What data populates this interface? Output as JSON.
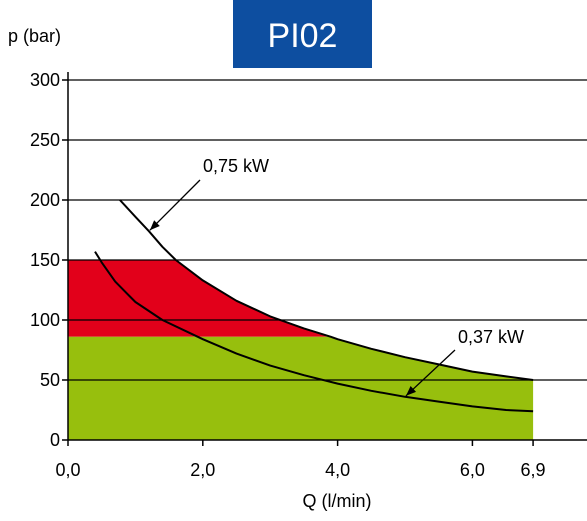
{
  "colors": {
    "title_bg": "#0d4ea0",
    "title_text": "#ffffff",
    "red_zone": "#e2001a",
    "green_zone": "#97bf0d",
    "lines": "#000000"
  },
  "chart_data": {
    "type": "line",
    "title": "PI02",
    "xlabel": "Q (l/min)",
    "ylabel": "p (bar)",
    "xlim": [
      0,
      7.7
    ],
    "ylim": [
      0,
      300
    ],
    "grid": "horizontal",
    "x_ticks": [
      {
        "value": 0,
        "label": "0,0"
      },
      {
        "value": 2,
        "label": "2,0"
      },
      {
        "value": 4,
        "label": "4,0"
      },
      {
        "value": 6,
        "label": "6,0"
      },
      {
        "value": 6.9,
        "label": "6,9"
      }
    ],
    "y_ticks": [
      {
        "value": 0,
        "label": "0"
      },
      {
        "value": 50,
        "label": "50"
      },
      {
        "value": 100,
        "label": "100"
      },
      {
        "value": 150,
        "label": "150"
      },
      {
        "value": 200,
        "label": "200"
      },
      {
        "value": 250,
        "label": "250"
      },
      {
        "value": 300,
        "label": "300"
      }
    ],
    "series": [
      {
        "name": "0,75 kW",
        "points": [
          [
            0.77,
            200
          ],
          [
            1.0,
            186
          ],
          [
            1.2,
            174
          ],
          [
            1.4,
            161
          ],
          [
            1.6,
            150
          ],
          [
            2.0,
            133
          ],
          [
            2.5,
            116
          ],
          [
            3.0,
            103
          ],
          [
            3.5,
            93
          ],
          [
            3.9,
            86
          ],
          [
            4.0,
            84
          ],
          [
            4.5,
            76
          ],
          [
            5.0,
            69
          ],
          [
            5.5,
            63
          ],
          [
            6.0,
            57
          ],
          [
            6.5,
            53
          ],
          [
            6.9,
            50
          ]
        ]
      },
      {
        "name": "0,37 kW",
        "points": [
          [
            0.4,
            157
          ],
          [
            0.5,
            148
          ],
          [
            0.7,
            132
          ],
          [
            1.0,
            115
          ],
          [
            1.4,
            100
          ],
          [
            2.0,
            84
          ],
          [
            2.5,
            72
          ],
          [
            3.0,
            62
          ],
          [
            3.5,
            54
          ],
          [
            4.0,
            47
          ],
          [
            4.5,
            41
          ],
          [
            5.0,
            36
          ],
          [
            5.5,
            32
          ],
          [
            6.0,
            28
          ],
          [
            6.5,
            25
          ],
          [
            6.9,
            24
          ]
        ]
      }
    ],
    "regions": [
      {
        "color": "#e2001a",
        "polygon": [
          [
            0,
            86
          ],
          [
            0,
            150
          ],
          [
            1.6,
            150
          ],
          [
            2.0,
            133
          ],
          [
            2.5,
            116
          ],
          [
            3.0,
            103
          ],
          [
            3.5,
            93
          ],
          [
            3.9,
            86
          ]
        ]
      },
      {
        "color": "#97bf0d",
        "polygon": [
          [
            0,
            0
          ],
          [
            0,
            86
          ],
          [
            3.9,
            86
          ],
          [
            4.0,
            84
          ],
          [
            4.5,
            76
          ],
          [
            5.0,
            69
          ],
          [
            5.5,
            63
          ],
          [
            6.0,
            57
          ],
          [
            6.5,
            53
          ],
          [
            6.9,
            50
          ],
          [
            6.9,
            0
          ]
        ]
      }
    ]
  }
}
